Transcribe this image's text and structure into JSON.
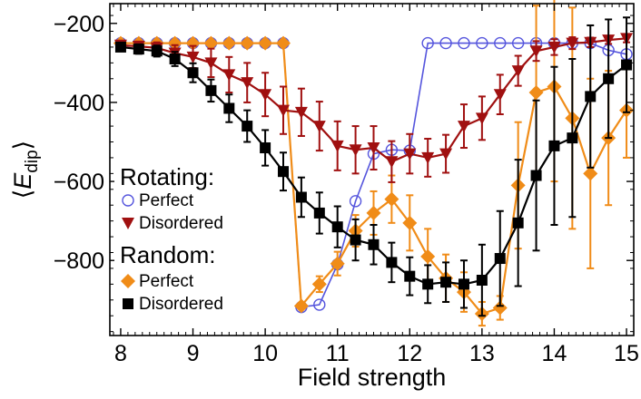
{
  "chart_data": {
    "type": "line",
    "xlabel": "Field strength",
    "ylabel_main": "E",
    "ylabel_sub": "dip",
    "xlim": [
      7.85,
      15.1
    ],
    "ylim": [
      -990,
      -150
    ],
    "x_ticks": [
      8,
      9,
      10,
      11,
      12,
      13,
      14,
      15
    ],
    "y_ticks": [
      -200,
      -400,
      -600,
      -800
    ],
    "y_tick_labels": [
      "−200",
      "−400",
      "−600",
      "−800"
    ],
    "legend": {
      "groups": [
        {
          "header": "Rotating:",
          "items": [
            {
              "label": "Perfect",
              "series": "rot_perfect"
            },
            {
              "label": "Disordered",
              "series": "rot_disordered"
            }
          ]
        },
        {
          "header": "Random:",
          "items": [
            {
              "label": "Perfect",
              "series": "rand_perfect"
            },
            {
              "label": "Disordered",
              "series": "rand_disordered"
            }
          ]
        }
      ]
    },
    "series": [
      {
        "id": "rot_perfect",
        "marker": "open-circle",
        "color": "#5555dd",
        "x": [
          8.0,
          8.25,
          8.5,
          8.75,
          9.0,
          9.25,
          9.5,
          9.75,
          10.0,
          10.25,
          10.5,
          10.75,
          11.0,
          11.25,
          11.5,
          11.75,
          12.0,
          12.25,
          12.5,
          12.75,
          13.0,
          13.25,
          13.5,
          13.75,
          14.0,
          14.25,
          14.5,
          14.75,
          15.0
        ],
        "values": [
          -250,
          -250,
          -250,
          -250,
          -250,
          -250,
          -250,
          -250,
          -250,
          -250,
          -918,
          -912,
          -810,
          -650,
          -530,
          -520,
          -522,
          -250,
          -250,
          -250,
          -250,
          -250,
          -250,
          -250,
          -250,
          -250,
          -250,
          -268,
          -278
        ],
        "errors": null
      },
      {
        "id": "rot_disordered",
        "marker": "filled-triangle-down",
        "color": "#a01010",
        "x": [
          8.0,
          8.25,
          8.5,
          8.75,
          9.0,
          9.25,
          9.5,
          9.75,
          10.0,
          10.25,
          10.5,
          10.75,
          11.0,
          11.25,
          11.5,
          11.75,
          12.0,
          12.25,
          12.5,
          12.75,
          13.0,
          13.25,
          13.5,
          13.75,
          14.0,
          14.25,
          14.5,
          14.75,
          15.0
        ],
        "values": [
          -255,
          -258,
          -262,
          -275,
          -285,
          -300,
          -330,
          -350,
          -380,
          -420,
          -425,
          -460,
          -510,
          -520,
          -515,
          -550,
          -530,
          -540,
          -530,
          -460,
          -440,
          -380,
          -320,
          -270,
          -260,
          -250,
          -248,
          -242,
          -238
        ],
        "errors": [
          10,
          12,
          14,
          20,
          28,
          36,
          45,
          50,
          55,
          60,
          60,
          62,
          62,
          60,
          55,
          52,
          50,
          48,
          48,
          55,
          55,
          50,
          38,
          25,
          20,
          15,
          12,
          10,
          10
        ]
      },
      {
        "id": "rand_perfect",
        "marker": "filled-diamond",
        "color": "#f08c18",
        "x": [
          8.0,
          8.25,
          8.5,
          8.75,
          9.0,
          9.25,
          9.5,
          9.75,
          10.0,
          10.25,
          10.5,
          10.75,
          11.0,
          11.25,
          11.5,
          11.75,
          12.0,
          12.25,
          12.5,
          12.75,
          13.0,
          13.25,
          13.5,
          13.75,
          14.0,
          14.25,
          14.5,
          14.75,
          15.0
        ],
        "values": [
          -250,
          -250,
          -250,
          -250,
          -250,
          -250,
          -250,
          -250,
          -250,
          -250,
          -915,
          -860,
          -808,
          -725,
          -680,
          -645,
          -705,
          -790,
          -845,
          -880,
          -935,
          -920,
          -610,
          -375,
          -360,
          -440,
          -580,
          -490,
          -420
        ],
        "errors": [
          0,
          0,
          0,
          0,
          0,
          0,
          0,
          0,
          0,
          0,
          0,
          20,
          30,
          40,
          55,
          60,
          70,
          70,
          60,
          50,
          30,
          30,
          160,
          220,
          240,
          280,
          240,
          170,
          120
        ]
      },
      {
        "id": "rand_disordered",
        "marker": "filled-square",
        "color": "#000000",
        "x": [
          8.0,
          8.25,
          8.5,
          8.75,
          9.0,
          9.25,
          9.5,
          9.75,
          10.0,
          10.25,
          10.5,
          10.75,
          11.0,
          11.25,
          11.5,
          11.75,
          12.0,
          12.25,
          12.5,
          12.75,
          13.0,
          13.25,
          13.5,
          13.75,
          14.0,
          14.25,
          14.5,
          14.75,
          15.0
        ],
        "values": [
          -260,
          -265,
          -270,
          -290,
          -325,
          -370,
          -415,
          -460,
          -515,
          -575,
          -640,
          -680,
          -715,
          -748,
          -760,
          -805,
          -840,
          -860,
          -855,
          -860,
          -850,
          -795,
          -705,
          -585,
          -510,
          -490,
          -385,
          -340,
          -305
        ],
        "errors": [
          10,
          12,
          14,
          18,
          24,
          28,
          35,
          40,
          45,
          48,
          50,
          52,
          52,
          52,
          50,
          50,
          48,
          48,
          50,
          60,
          90,
          120,
          160,
          190,
          200,
          200,
          180,
          150,
          120
        ]
      }
    ]
  }
}
